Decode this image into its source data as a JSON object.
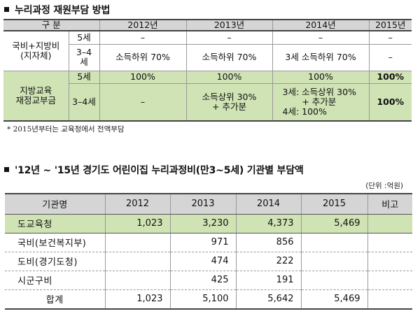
{
  "section1": {
    "title": "누리과정 재원부담 방법",
    "table": {
      "head": {
        "category": "구  분",
        "years": [
          "2012년",
          "2013년",
          "2014년",
          "2015년"
        ]
      },
      "national_group": "국비+지방비\n(지자체)",
      "national_rows": [
        {
          "age": "5세",
          "cells": [
            "–",
            "–",
            "–",
            "–"
          ]
        },
        {
          "age": "3–4\n세",
          "cells": [
            "소득하위 70%",
            "소득하위 70%",
            "3세 소득하위 70%",
            "–"
          ]
        }
      ],
      "edu_group": "지방교육\n재정교부금",
      "edu_rows": [
        {
          "age": "5세",
          "cells": [
            "100%",
            "100%",
            "100%",
            "100%"
          ]
        },
        {
          "age": "3–4세",
          "cells": [
            "–",
            "소득상위 30%\n+ 추가분",
            "3세: 소득상위 30%\n       + 추가분\n4세: 100%",
            "100%"
          ]
        }
      ]
    },
    "note": "* 2015년부터는 교육청에서 전액부담"
  },
  "section2": {
    "title": "'12년 ~ '15년 경기도 어린이집 누리과정비(만3~5세) 기관별 부담액",
    "unit": "(단위 :억원)",
    "table": {
      "headers": [
        "기관명",
        "2012",
        "2013",
        "2014",
        "2015",
        "비고"
      ],
      "rows": [
        {
          "name": "도교육청",
          "values": [
            "1,023",
            "3,230",
            "4,373",
            "5,469",
            ""
          ]
        },
        {
          "name": "국비(보건복지부)",
          "values": [
            "",
            "971",
            "856",
            "",
            ""
          ]
        },
        {
          "name": "도비(경기도청)",
          "values": [
            "",
            "474",
            "222",
            "",
            ""
          ]
        },
        {
          "name": "시군구비",
          "values": [
            "",
            "425",
            "191",
            "",
            ""
          ]
        },
        {
          "name": "합계",
          "values": [
            "1,023",
            "5,100",
            "5,642",
            "5,469",
            ""
          ]
        }
      ]
    }
  },
  "colors": {
    "header_gray": "#d5d5d5",
    "highlight_green": "#cfe3b5",
    "border": "#444444"
  }
}
